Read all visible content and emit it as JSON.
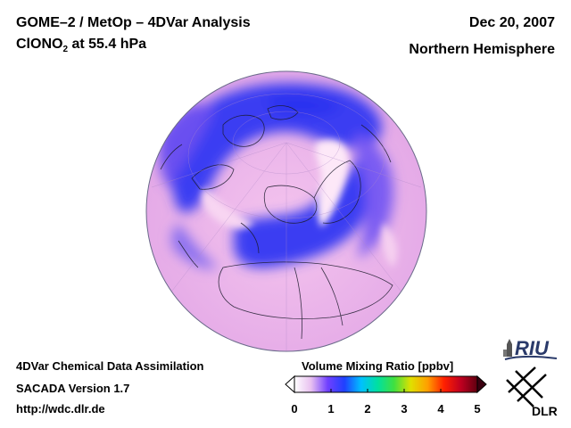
{
  "header": {
    "title": "GOME–2 / MetOp – 4DVar Analysis",
    "species": "ClONO",
    "species_sub": "2",
    "level": " at 55.4 hPa",
    "date": "Dec 20, 2007",
    "region": "Northern Hemisphere"
  },
  "footer": {
    "line1": "4DVar Chemical Data Assimilation",
    "line2": "SACADA Version 1.7",
    "line3": "http://wdc.dlr.de"
  },
  "colorbar": {
    "title": "Volume Mixing Ratio [ppbv]",
    "ticks": [
      "0",
      "1",
      "2",
      "3",
      "4",
      "5"
    ],
    "range": [
      0,
      5
    ],
    "colors": [
      "#ffffff",
      "#e8c0f0",
      "#7040ff",
      "#2040ff",
      "#00c0ff",
      "#00e0a0",
      "#40e040",
      "#e0e000",
      "#ffa000",
      "#ff2000",
      "#c00020",
      "#600010"
    ]
  },
  "logos": {
    "riu": "RIU",
    "dlr": "DLR"
  },
  "colors": {
    "ocean_background": "#f0b8ec",
    "low_value": "#3838f0",
    "high_value": "#fff0f8"
  }
}
